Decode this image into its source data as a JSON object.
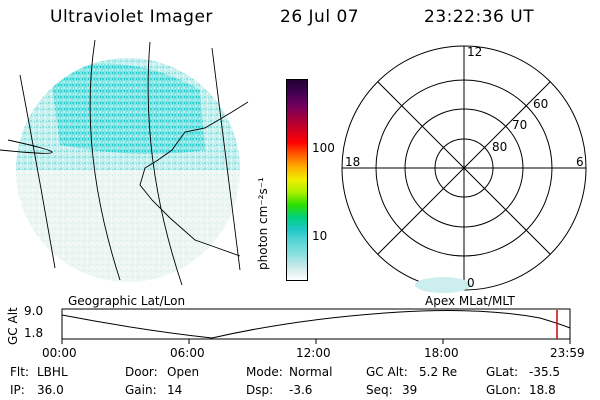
{
  "header": {
    "title": "Ultraviolet Imager",
    "date": "26 Jul 07",
    "time": "23:22:36 UT"
  },
  "colorbar": {
    "label": "photon cm⁻²s⁻¹",
    "ticks": [
      "100",
      "10"
    ],
    "colors": [
      "#ffffff",
      "#cfeaea",
      "#8de0e0",
      "#5fd6d6",
      "#20c8c8",
      "#00d080",
      "#2be000",
      "#a8f000",
      "#f0f000",
      "#ffb000",
      "#ff6000",
      "#ff0000",
      "#d00020",
      "#a00040",
      "#700060",
      "#400050",
      "#200030"
    ]
  },
  "polar": {
    "hour_labels": [
      "12",
      "18",
      "6",
      "0"
    ],
    "lat_labels": [
      "60",
      "70",
      "80"
    ]
  },
  "orbit": {
    "left_caption": "Geographic Lat/Lon",
    "right_caption": "Apex MLat/MLT",
    "y_axis_label": "GC Alt",
    "y_ticks": [
      "9.0",
      "1.8"
    ],
    "x_ticks": [
      "00:00",
      "06:00",
      "12:00",
      "18:00",
      "23:59"
    ],
    "marker_color": "#cc0000"
  },
  "status": {
    "flt_label": "Flt:",
    "flt": "LBHL",
    "ip_label": "IP:",
    "ip": "36.0",
    "door_label": "Door:",
    "door": "Open",
    "gain_label": "Gain:",
    "gain": "14",
    "mode_label": "Mode:",
    "mode": "Normal",
    "dsp_label": "Dsp:",
    "dsp": "-3.6",
    "gcalt_label": "GC Alt:",
    "gcalt": "5.2 Re",
    "seq_label": "Seq:",
    "seq": "39",
    "glat_label": "GLat:",
    "glat": "-35.5",
    "glon_label": "GLon:",
    "glon": "18.8"
  }
}
